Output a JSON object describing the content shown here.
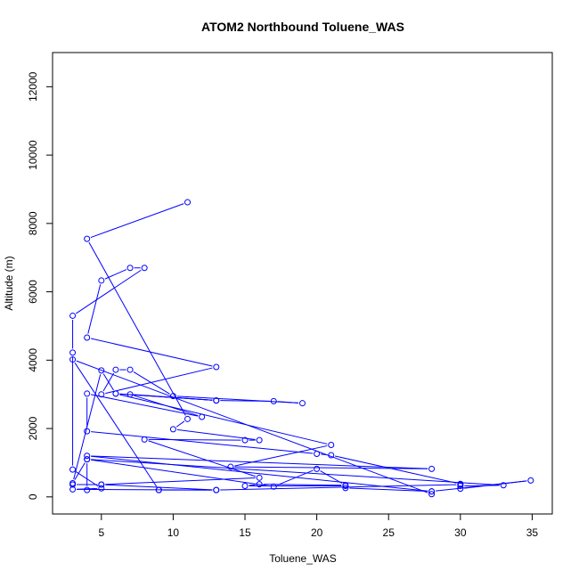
{
  "chart_data": {
    "type": "line",
    "title": "ATOM2 Northbound Toluene_WAS",
    "xlabel": "Toluene_WAS",
    "ylabel": "Altitude (m)",
    "xlim": [
      1.6,
      36.4
    ],
    "ylim": [
      -500,
      13000
    ],
    "xticks": [
      5,
      10,
      15,
      20,
      25,
      30,
      35
    ],
    "yticks": [
      0,
      2000,
      4000,
      6000,
      8000,
      10000,
      12000
    ],
    "line_color": "#0000ff",
    "marker": "open-circle",
    "grid": false,
    "legend": "none",
    "series": [
      {
        "points": [
          [
            11,
            8620
          ],
          [
            4,
            7550
          ],
          [
            11,
            2280
          ],
          [
            10,
            1980
          ],
          [
            16,
            1660
          ],
          [
            15,
            1660
          ],
          [
            8,
            1680
          ],
          [
            16,
            560
          ],
          [
            5,
            360
          ],
          [
            3,
            360
          ],
          [
            5,
            360
          ],
          [
            13,
            200
          ],
          [
            9,
            200
          ],
          [
            9,
            200
          ],
          [
            3,
            4020
          ],
          [
            28,
            80
          ],
          [
            28,
            160
          ],
          [
            34.9,
            480
          ],
          [
            30,
            240
          ],
          [
            30,
            360
          ],
          [
            13,
            200
          ],
          [
            3,
            220
          ],
          [
            5,
            250
          ],
          [
            3,
            800
          ],
          [
            3,
            4220
          ],
          [
            3,
            5300
          ],
          [
            8,
            6700
          ],
          [
            7,
            6700
          ],
          [
            5,
            6330
          ],
          [
            4,
            4660
          ],
          [
            13,
            3800
          ],
          [
            5,
            3000
          ],
          [
            6,
            3720
          ],
          [
            7,
            3720
          ],
          [
            10,
            2950
          ],
          [
            19,
            2740
          ],
          [
            17,
            2800
          ],
          [
            13,
            2820
          ],
          [
            6,
            3020
          ],
          [
            5,
            3700
          ],
          [
            3,
            400
          ],
          [
            4,
            1100
          ],
          [
            33,
            340
          ],
          [
            30,
            320
          ],
          [
            30,
            380
          ],
          [
            21,
            1220
          ],
          [
            20,
            1260
          ],
          [
            4,
            1920
          ],
          [
            4,
            3020
          ],
          [
            12,
            2340
          ],
          [
            7,
            3000
          ],
          [
            13,
            2820
          ],
          [
            6,
            3020
          ],
          [
            21,
            1520
          ],
          [
            14,
            880
          ],
          [
            28,
            820
          ],
          [
            4,
            1200
          ],
          [
            28,
            160
          ],
          [
            22,
            260
          ],
          [
            22,
            320
          ],
          [
            15,
            320
          ],
          [
            16,
            370
          ],
          [
            22,
            340
          ],
          [
            20,
            820
          ],
          [
            17,
            300
          ],
          [
            4,
            1100
          ],
          [
            4,
            200
          ]
        ]
      }
    ]
  }
}
